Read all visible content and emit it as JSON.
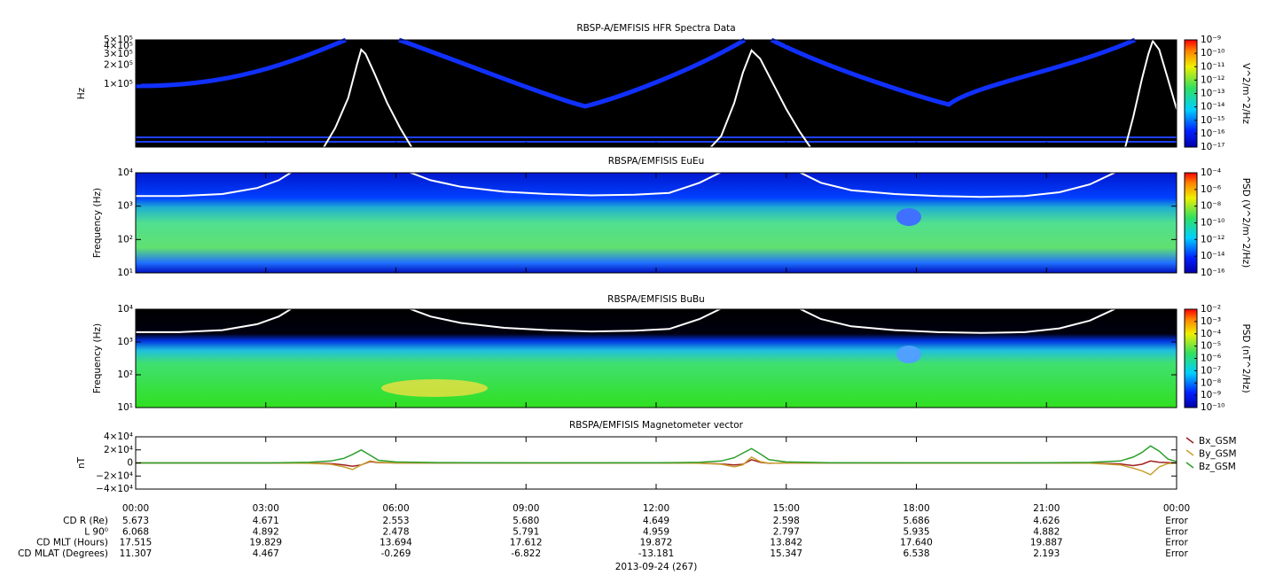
{
  "chart_data": [
    {
      "type": "spectrogram",
      "title": "RBSP-A/EMFISIS  HFR Spectra Data",
      "ylabel": "Hz",
      "log_y": true,
      "xlim": [
        0,
        24
      ],
      "xticks": [
        0,
        3,
        6,
        9,
        12,
        15,
        18,
        21,
        24
      ],
      "ylim": [
        10000,
        500000
      ],
      "yticks": [
        {
          "value": 100000,
          "label": "1×10⁵"
        },
        {
          "value": 200000,
          "label": "2×10⁵"
        },
        {
          "value": 300000,
          "label": "3×10⁵"
        },
        {
          "value": 400000,
          "label": "4×10⁵"
        },
        {
          "value": 500000,
          "label": "5×10⁵"
        }
      ],
      "zlim": [
        1e-17,
        1e-09
      ],
      "zlabel": "V^2/m^2/Hz",
      "zticks": [
        {
          "value": 1e-09,
          "label": "10⁻⁹"
        },
        {
          "value": 1e-10,
          "label": "10⁻¹⁰"
        },
        {
          "value": 1e-11,
          "label": "10⁻¹¹"
        },
        {
          "value": 1e-12,
          "label": "10⁻¹²"
        },
        {
          "value": 1e-13,
          "label": "10⁻¹³"
        },
        {
          "value": 1e-14,
          "label": "10⁻¹⁴"
        },
        {
          "value": 1e-15,
          "label": "10⁻¹⁵"
        },
        {
          "value": 1e-16,
          "label": "10⁻¹⁶"
        },
        {
          "value": 1e-17,
          "label": "10⁻¹⁷"
        }
      ],
      "series": [
        {
          "color": "#ffffff",
          "x": [
            4.3,
            4.6,
            4.9,
            5.1,
            5.2,
            5.3,
            5.5,
            5.8,
            6.1,
            6.4,
            null,
            13.2,
            13.5,
            13.8,
            14.0,
            14.2,
            14.4,
            14.7,
            15.0,
            15.3,
            15.6,
            null,
            22.8,
            23.0,
            23.2,
            23.35,
            23.45,
            23.6,
            23.8,
            24.0
          ],
          "values": [
            9000,
            20000,
            60000,
            200000,
            350000,
            300000,
            150000,
            50000,
            20000,
            9000,
            null,
            9000,
            15000,
            50000,
            150000,
            340000,
            250000,
            100000,
            40000,
            18000,
            9000,
            null,
            9000,
            30000,
            120000,
            300000,
            480000,
            350000,
            120000,
            40000
          ]
        }
      ]
    },
    {
      "type": "spectrogram",
      "title": "RBSPA/EMFISIS  EuEu",
      "ylabel": "Frequency (Hz)",
      "log_y": true,
      "xlim": [
        0,
        24
      ],
      "xticks": [
        0,
        3,
        6,
        9,
        12,
        15,
        18,
        21,
        24
      ],
      "ylim": [
        10,
        10000
      ],
      "yticks": [
        {
          "value": 10,
          "label": "10¹"
        },
        {
          "value": 100,
          "label": "10²"
        },
        {
          "value": 1000,
          "label": "10³"
        },
        {
          "value": 10000,
          "label": "10⁴"
        }
      ],
      "zlim": [
        1e-16,
        0.0001
      ],
      "zlabel": "PSD (V^2/m^2/Hz)",
      "zticks": [
        {
          "value": 0.0001,
          "label": "10⁻⁴"
        },
        {
          "value": 1e-06,
          "label": "10⁻⁶"
        },
        {
          "value": 1e-08,
          "label": "10⁻⁸"
        },
        {
          "value": 1e-10,
          "label": "10⁻¹⁰"
        },
        {
          "value": 1e-12,
          "label": "10⁻¹²"
        },
        {
          "value": 1e-14,
          "label": "10⁻¹⁴"
        },
        {
          "value": 1e-16,
          "label": "10⁻¹⁶"
        }
      ],
      "series": [
        {
          "color": "#ffffff",
          "x": [
            0,
            1,
            2,
            2.8,
            3.3,
            3.6,
            null,
            6.3,
            6.8,
            7.5,
            8.5,
            9.5,
            10.5,
            11.5,
            12.3,
            13.0,
            13.5,
            null,
            15.3,
            15.8,
            16.5,
            17.5,
            18.5,
            19.5,
            20.5,
            21.3,
            22.0,
            22.6
          ],
          "values": [
            2000,
            2000,
            2300,
            3500,
            6000,
            10500,
            null,
            10500,
            6000,
            3800,
            2700,
            2300,
            2100,
            2200,
            2500,
            5000,
            10500,
            null,
            10500,
            5000,
            3000,
            2300,
            2000,
            1900,
            2000,
            2600,
            4500,
            10500
          ]
        }
      ]
    },
    {
      "type": "spectrogram",
      "title": "RBSPA/EMFISIS  BuBu",
      "ylabel": "Frequency (Hz)",
      "log_y": true,
      "xlim": [
        0,
        24
      ],
      "xticks": [
        0,
        3,
        6,
        9,
        12,
        15,
        18,
        21,
        24
      ],
      "ylim": [
        10,
        10000
      ],
      "yticks": [
        {
          "value": 10,
          "label": "10¹"
        },
        {
          "value": 100,
          "label": "10²"
        },
        {
          "value": 1000,
          "label": "10³"
        },
        {
          "value": 10000,
          "label": "10⁴"
        }
      ],
      "zlim": [
        1e-10,
        0.01
      ],
      "zlabel": "PSD (nT^2/Hz)",
      "zticks": [
        {
          "value": 0.01,
          "label": "10⁻²"
        },
        {
          "value": 0.001,
          "label": "10⁻³"
        },
        {
          "value": 0.0001,
          "label": "10⁻⁴"
        },
        {
          "value": 1e-05,
          "label": "10⁻⁵"
        },
        {
          "value": 1e-06,
          "label": "10⁻⁶"
        },
        {
          "value": 1e-07,
          "label": "10⁻⁷"
        },
        {
          "value": 1e-08,
          "label": "10⁻⁸"
        },
        {
          "value": 1e-09,
          "label": "10⁻⁹"
        },
        {
          "value": 1e-10,
          "label": "10⁻¹⁰"
        }
      ],
      "series": [
        {
          "color": "#ffffff",
          "x": [
            0,
            1,
            2,
            2.8,
            3.3,
            3.6,
            null,
            6.3,
            6.8,
            7.5,
            8.5,
            9.5,
            10.5,
            11.5,
            12.3,
            13.0,
            13.5,
            null,
            15.3,
            15.8,
            16.5,
            17.5,
            18.5,
            19.5,
            20.5,
            21.3,
            22.0,
            22.6
          ],
          "values": [
            2000,
            2000,
            2300,
            3500,
            6000,
            10500,
            null,
            10500,
            6000,
            3800,
            2700,
            2300,
            2100,
            2200,
            2500,
            5000,
            10500,
            null,
            10500,
            5000,
            3000,
            2300,
            2000,
            1900,
            2000,
            2600,
            4500,
            10500
          ]
        }
      ]
    },
    {
      "type": "line",
      "title": "RBSPA/EMFISIS  Magnetometer vector",
      "ylabel": "nT",
      "xlim": [
        0,
        24
      ],
      "xticks": [
        {
          "value": 0,
          "label": "00:00"
        },
        {
          "value": 3,
          "label": "03:00"
        },
        {
          "value": 6,
          "label": "06:00"
        },
        {
          "value": 9,
          "label": "09:00"
        },
        {
          "value": 12,
          "label": "12:00"
        },
        {
          "value": 15,
          "label": "15:00"
        },
        {
          "value": 18,
          "label": "18:00"
        },
        {
          "value": 21,
          "label": "21:00"
        },
        {
          "value": 24,
          "label": "00:00"
        }
      ],
      "ylim": [
        -40000,
        40000
      ],
      "yticks": [
        {
          "value": 40000,
          "label": "4×10⁴"
        },
        {
          "value": 20000,
          "label": "2×10⁴"
        },
        0,
        {
          "value": -20000,
          "label": "−2×10⁴"
        },
        {
          "value": -40000,
          "label": "−4×10⁴"
        }
      ],
      "xlabel": "2013-09-24 (267)",
      "x": [
        0,
        3,
        4,
        4.5,
        4.8,
        5.0,
        5.2,
        5.4,
        5.6,
        6,
        7,
        9,
        12,
        13,
        13.5,
        13.8,
        14.0,
        14.2,
        14.4,
        14.6,
        15,
        16,
        18,
        21,
        22,
        22.7,
        23.0,
        23.2,
        23.4,
        23.6,
        23.8,
        24
      ],
      "series": [
        {
          "name": "Bx_GSM",
          "color": "#a0201c",
          "values": [
            0,
            0,
            -300,
            -1000,
            -3000,
            -5000,
            -3000,
            2000,
            500,
            0,
            0,
            0,
            0,
            -300,
            -1500,
            -3000,
            -2000,
            5000,
            1000,
            -500,
            0,
            0,
            0,
            0,
            -200,
            -1500,
            -4000,
            -2000,
            3000,
            1000,
            500,
            0
          ]
        },
        {
          "name": "By_GSM",
          "color": "#c8a030",
          "values": [
            0,
            0,
            -500,
            -2000,
            -6000,
            -10000,
            -3000,
            3000,
            1000,
            0,
            0,
            0,
            0,
            -500,
            -2000,
            -6000,
            -3000,
            9000,
            2000,
            -500,
            0,
            0,
            0,
            0,
            -300,
            -3000,
            -8000,
            -12000,
            -18000,
            -6000,
            -1000,
            0
          ]
        },
        {
          "name": "Bz_GSM",
          "color": "#2ca02c",
          "values": [
            0,
            0,
            1000,
            3000,
            7000,
            13000,
            20000,
            12000,
            4000,
            1500,
            500,
            200,
            300,
            1000,
            3000,
            8000,
            15000,
            22000,
            14000,
            5000,
            1500,
            400,
            200,
            300,
            800,
            3000,
            9000,
            16000,
            26000,
            18000,
            6000,
            2000
          ]
        }
      ]
    }
  ],
  "ephemeris": {
    "rows": [
      {
        "label": "CD R (Re)",
        "values": [
          "5.673",
          "4.671",
          "2.553",
          "5.680",
          "4.649",
          "2.598",
          "5.686",
          "4.626",
          "Error"
        ]
      },
      {
        "label": "L 90⁰",
        "values": [
          "6.068",
          "4.892",
          "2.478",
          "5.791",
          "4.959",
          "2.797",
          "5.935",
          "4.882",
          "Error"
        ]
      },
      {
        "label": "CD MLT (Hours)",
        "values": [
          "17.515",
          "19.829",
          "13.694",
          "17.612",
          "19.872",
          "13.842",
          "17.640",
          "19.887",
          "Error"
        ]
      },
      {
        "label": "CD MLAT (Degrees)",
        "values": [
          "11.307",
          "4.467",
          "-0.269",
          "-6.822",
          "-13.181",
          "15.347",
          "6.538",
          "2.193",
          "Error"
        ]
      }
    ]
  }
}
